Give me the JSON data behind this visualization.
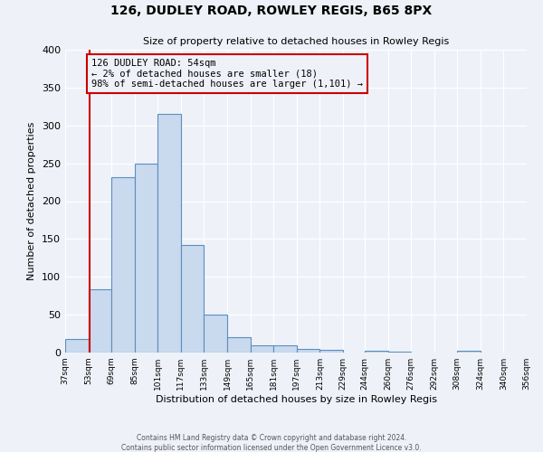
{
  "title": "126, DUDLEY ROAD, ROWLEY REGIS, B65 8PX",
  "subtitle": "Size of property relative to detached houses in Rowley Regis",
  "xlabel": "Distribution of detached houses by size in Rowley Regis",
  "ylabel": "Number of detached properties",
  "bin_labels": [
    "37sqm",
    "53sqm",
    "69sqm",
    "85sqm",
    "101sqm",
    "117sqm",
    "133sqm",
    "149sqm",
    "165sqm",
    "181sqm",
    "197sqm",
    "213sqm",
    "229sqm",
    "244sqm",
    "260sqm",
    "276sqm",
    "292sqm",
    "308sqm",
    "324sqm",
    "340sqm",
    "356sqm"
  ],
  "bin_edges": [
    37,
    53,
    69,
    85,
    101,
    117,
    133,
    149,
    165,
    181,
    197,
    213,
    229,
    244,
    260,
    276,
    292,
    308,
    324,
    340,
    356
  ],
  "bar_heights": [
    18,
    83,
    232,
    250,
    315,
    142,
    50,
    20,
    9,
    10,
    5,
    3,
    0,
    2,
    1,
    0,
    0,
    2,
    0,
    0,
    0
  ],
  "bar_fill_color": "#c9d9ee",
  "bar_edge_color": "#5b8fbe",
  "vline_x": 54,
  "vline_color": "#cc0000",
  "annotation_text": "126 DUDLEY ROAD: 54sqm\n← 2% of detached houses are smaller (18)\n98% of semi-detached houses are larger (1,101) →",
  "annotation_box_edge": "#cc0000",
  "ylim": [
    0,
    400
  ],
  "yticks": [
    0,
    50,
    100,
    150,
    200,
    250,
    300,
    350,
    400
  ],
  "background_color": "#eef2f8",
  "grid_color": "#ffffff",
  "footer_line1": "Contains HM Land Registry data © Crown copyright and database right 2024.",
  "footer_line2": "Contains public sector information licensed under the Open Government Licence v3.0."
}
